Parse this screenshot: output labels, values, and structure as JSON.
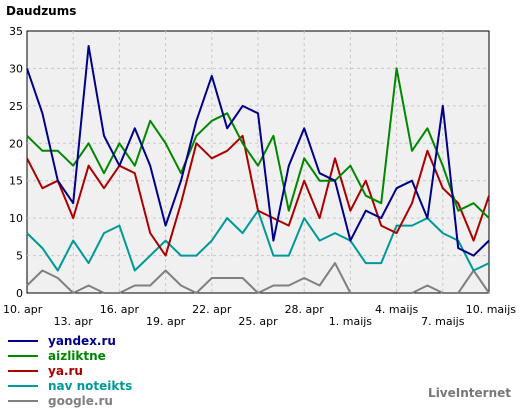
{
  "chart_data": {
    "type": "line",
    "ylabel": "Daudzums",
    "ylim": [
      0,
      35
    ],
    "yticks": [
      0,
      5,
      10,
      15,
      20,
      25,
      30,
      35
    ],
    "grid": true,
    "legend_position": "bottom-left",
    "x": [
      "10. apr",
      "11. apr",
      "12. apr",
      "13. apr",
      "14. apr",
      "15. apr",
      "16. apr",
      "17. apr",
      "18. apr",
      "19. apr",
      "20. apr",
      "21. apr",
      "22. apr",
      "23. apr",
      "24. apr",
      "25. apr",
      "26. apr",
      "27. apr",
      "28. apr",
      "29. apr",
      "30. apr",
      "1. maijs",
      "2. maijs",
      "3. maijs",
      "4. maijs",
      "5. maijs",
      "6. maijs",
      "7. maijs",
      "8. maijs",
      "9. maijs",
      "10. maijs"
    ],
    "xtick_labels": [
      "10. apr",
      "13. apr",
      "16. apr",
      "19. apr",
      "22. apr",
      "25. apr",
      "28. apr",
      "1. maijs",
      "4. maijs",
      "7. maijs",
      "10. maijs"
    ],
    "series": [
      {
        "name": "yandex.ru",
        "color": "#000088",
        "values": [
          30,
          24,
          15,
          12,
          33,
          21,
          17,
          22,
          17,
          9,
          15,
          23,
          29,
          22,
          25,
          24,
          7,
          17,
          22,
          16,
          15,
          7,
          11,
          10,
          14,
          15,
          10,
          25,
          6,
          5,
          7
        ]
      },
      {
        "name": "aizliktne",
        "color": "#008800",
        "values": [
          21,
          19,
          19,
          17,
          20,
          16,
          20,
          17,
          23,
          20,
          16,
          21,
          23,
          24,
          20,
          17,
          21,
          11,
          18,
          15,
          15,
          17,
          13,
          12,
          30,
          19,
          22,
          17,
          11,
          12,
          10
        ]
      },
      {
        "name": "ya.ru",
        "color": "#aa0000",
        "values": [
          18,
          14,
          15,
          10,
          17,
          14,
          17,
          16,
          8,
          5,
          12,
          20,
          18,
          19,
          21,
          11,
          10,
          9,
          15,
          10,
          18,
          11,
          15,
          9,
          8,
          12,
          19,
          14,
          12,
          7,
          13
        ]
      },
      {
        "name": "nav noteikts",
        "color": "#009999",
        "values": [
          8,
          6,
          3,
          7,
          4,
          8,
          9,
          3,
          5,
          7,
          5,
          5,
          7,
          10,
          8,
          11,
          5,
          5,
          10,
          7,
          8,
          7,
          4,
          4,
          9,
          9,
          10,
          8,
          7,
          3,
          4
        ]
      },
      {
        "name": "google.ru",
        "color": "#808080",
        "values": [
          1,
          3,
          2,
          0,
          1,
          0,
          0,
          1,
          1,
          3,
          1,
          0,
          2,
          2,
          2,
          0,
          1,
          1,
          2,
          1,
          4,
          0,
          0,
          0,
          0,
          0,
          1,
          0,
          0,
          3,
          0
        ]
      }
    ]
  },
  "brand": "LiveInternet"
}
